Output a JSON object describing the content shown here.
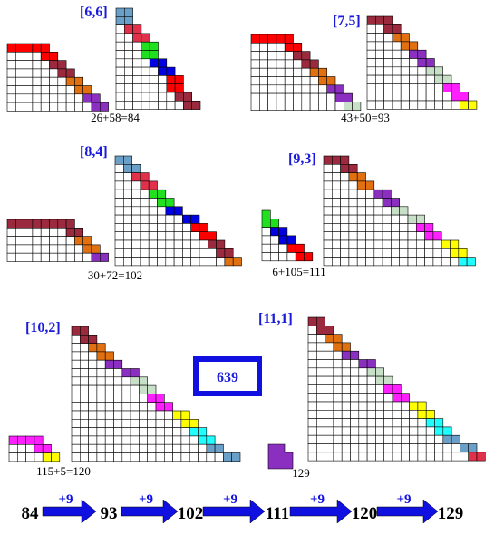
{
  "panels": [
    {
      "label": "[6,6]",
      "equation": "26+58=84"
    },
    {
      "label": "[7,5]",
      "equation": "43+50=93"
    },
    {
      "label": "[8,4]",
      "equation": "30+72=102"
    },
    {
      "label": "[9,3]",
      "equation": "6+105=111"
    },
    {
      "label": "[10,2]",
      "equation": "115+5=120"
    },
    {
      "label": "[11,1]",
      "equation": "129"
    }
  ],
  "total": 639,
  "sequence": {
    "numbers": [
      84,
      93,
      102,
      111,
      120,
      129
    ],
    "steps": [
      "+9",
      "+9",
      "+9",
      "+9",
      "+9"
    ]
  }
}
